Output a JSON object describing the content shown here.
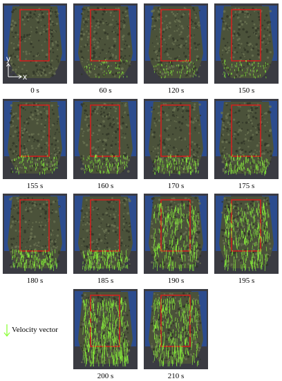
{
  "figure": {
    "axes": {
      "y_label": "y",
      "x_label": "x"
    },
    "legend": {
      "label": "Velocity vector"
    },
    "colors": {
      "background": "#3a3b42",
      "blue_mat": "#2c4c8e",
      "pile": "#4b523a",
      "region_box": "#d81c1c",
      "vector": "#8dff3a"
    },
    "panels": [
      {
        "time": "0 s",
        "flow": 0.0
      },
      {
        "time": "60 s",
        "flow": 0.05
      },
      {
        "time": "120 s",
        "flow": 0.08
      },
      {
        "time": "150 s",
        "flow": 0.1
      },
      {
        "time": "155 s",
        "flow": 0.15
      },
      {
        "time": "160 s",
        "flow": 0.2
      },
      {
        "time": "170 s",
        "flow": 0.25
      },
      {
        "time": "175 s",
        "flow": 0.3
      },
      {
        "time": "180 s",
        "flow": 0.35
      },
      {
        "time": "185 s",
        "flow": 0.4
      },
      {
        "time": "190 s",
        "flow": 0.75
      },
      {
        "time": "195 s",
        "flow": 0.8
      },
      {
        "time": "200 s",
        "flow": 1.0
      },
      {
        "time": "210 s",
        "flow": 0.85
      }
    ]
  }
}
